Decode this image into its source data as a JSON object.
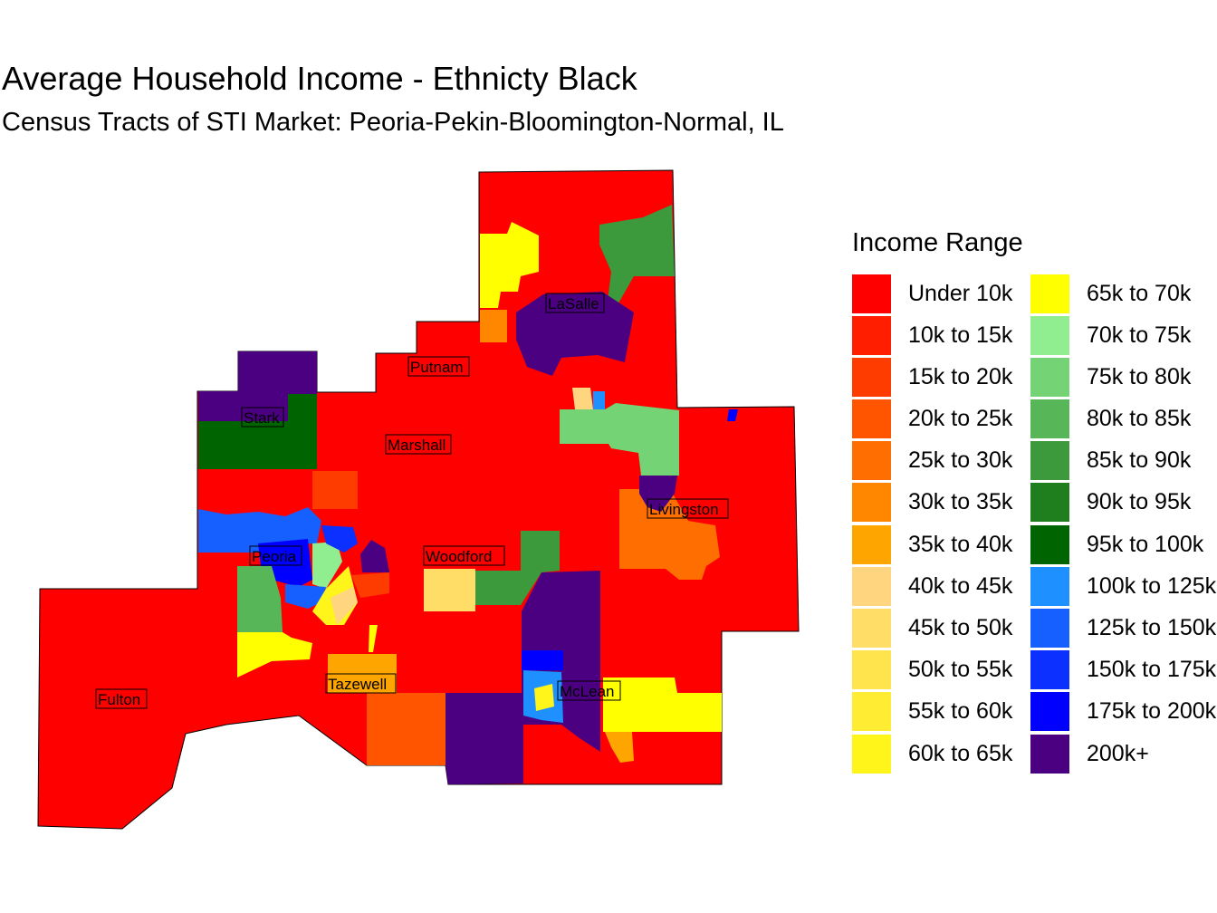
{
  "title": "Average Household Income - Ethnicty Black",
  "subtitle": "Census Tracts of STI Market: Peoria-Pekin-Bloomington-Normal, IL",
  "legend": {
    "title": "Income Range",
    "items": [
      {
        "label": "Under 10k",
        "color": "#FF0000"
      },
      {
        "label": "10k to 15k",
        "color": "#FF1E00"
      },
      {
        "label": "15k to 20k",
        "color": "#FF3C00"
      },
      {
        "label": "20k to 25k",
        "color": "#FF5500"
      },
      {
        "label": "25k to 30k",
        "color": "#FF6E00"
      },
      {
        "label": "30k to 35k",
        "color": "#FF8700"
      },
      {
        "label": "35k to 40k",
        "color": "#FFA500"
      },
      {
        "label": "40k to 45k",
        "color": "#FFD580"
      },
      {
        "label": "45k to 50k",
        "color": "#FFDD66"
      },
      {
        "label": "50k to 55k",
        "color": "#FFE44D"
      },
      {
        "label": "55k to 60k",
        "color": "#FFEC33"
      },
      {
        "label": "60k to 65k",
        "color": "#FFF51A"
      },
      {
        "label": "65k to 70k",
        "color": "#FFFF00"
      },
      {
        "label": "70k to 75k",
        "color": "#90EE90"
      },
      {
        "label": "75k to 80k",
        "color": "#74D374"
      },
      {
        "label": "80k to 85k",
        "color": "#57B657"
      },
      {
        "label": "85k to 90k",
        "color": "#3C9A3C"
      },
      {
        "label": "90k to 95k",
        "color": "#1F7F1F"
      },
      {
        "label": "95k to 100k",
        "color": "#006400"
      },
      {
        "label": "100k to 125k",
        "color": "#1E90FF"
      },
      {
        "label": "125k to 150k",
        "color": "#1660FF"
      },
      {
        "label": "150k to 175k",
        "color": "#0B30FF"
      },
      {
        "label": "175k to 200k",
        "color": "#0000FF"
      },
      {
        "label": "200k+",
        "color": "#4B0082"
      }
    ]
  },
  "counties": [
    {
      "name": "LaSalle"
    },
    {
      "name": "Putnam"
    },
    {
      "name": "Stark"
    },
    {
      "name": "Marshall"
    },
    {
      "name": "Peoria"
    },
    {
      "name": "Woodford"
    },
    {
      "name": "Livingston"
    },
    {
      "name": "Tazewell"
    },
    {
      "name": "Fulton"
    },
    {
      "name": "McLean"
    }
  ]
}
